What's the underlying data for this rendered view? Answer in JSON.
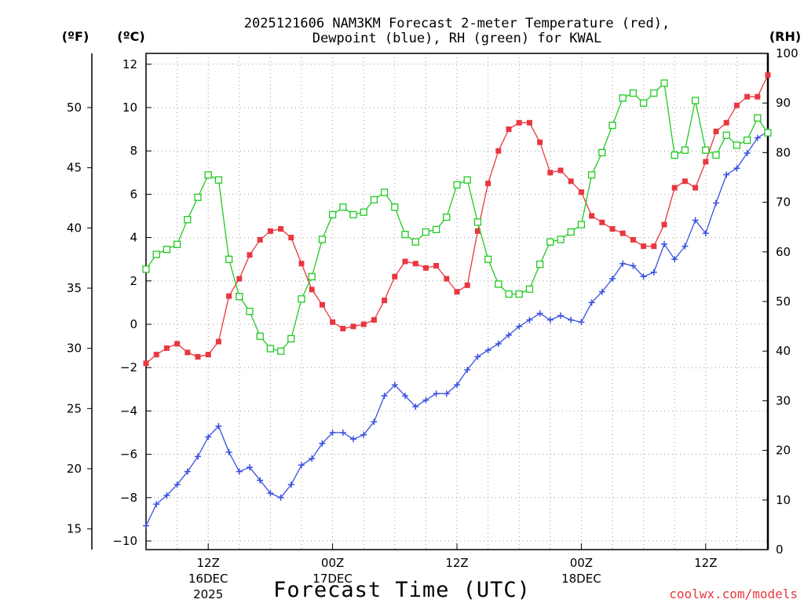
{
  "chart_data": {
    "type": "line",
    "title_line1": "2025121606 NAM3KM Forecast 2-meter Temperature (red),",
    "title_line2": "Dewpoint (blue), RH (green) for KWAL",
    "xlabel": "Forecast Time (UTC)",
    "credit": "coolwx.com/models",
    "unit_f": "(ºF)",
    "unit_c": "(ºC)",
    "unit_rh": "(RH)",
    "hours_start": 0,
    "hours_end": 60,
    "ylim_c": [
      -10.8,
      12.5
    ],
    "ylim_rh": [
      0,
      100
    ],
    "yticks_c": [
      "-10",
      "-8",
      "-6",
      "-4",
      "-2",
      "0",
      "2",
      "4",
      "6",
      "8",
      "10",
      "12"
    ],
    "yticks_f": [
      "15",
      "20",
      "25",
      "30",
      "35",
      "40",
      "45",
      "50"
    ],
    "yticks_rh": [
      "0",
      "10",
      "20",
      "30",
      "40",
      "50",
      "60",
      "70",
      "80",
      "90",
      "100"
    ],
    "xticks": [
      {
        "hour": 6,
        "line1": "12Z",
        "line2": "16DEC",
        "line3": "2025"
      },
      {
        "hour": 18,
        "line1": "00Z",
        "line2": "17DEC",
        "line3": ""
      },
      {
        "hour": 30,
        "line1": "12Z",
        "line2": "",
        "line3": ""
      },
      {
        "hour": 42,
        "line1": "00Z",
        "line2": "18DEC",
        "line3": ""
      },
      {
        "hour": 54,
        "line1": "12Z",
        "line2": "",
        "line3": ""
      }
    ],
    "series": [
      {
        "name": "Temperature",
        "color": "#e8373f",
        "marker": "filled-square",
        "axis": "c",
        "values": [
          -1.8,
          -1.4,
          -1.1,
          -0.9,
          -1.3,
          -1.5,
          -1.4,
          -0.8,
          1.3,
          2.1,
          3.2,
          3.9,
          4.3,
          4.4,
          4.0,
          2.8,
          1.6,
          0.9,
          0.1,
          -0.2,
          -0.1,
          0.0,
          0.2,
          1.1,
          2.2,
          2.9,
          2.8,
          2.6,
          2.7,
          2.1,
          1.5,
          1.8,
          4.3,
          6.5,
          8.0,
          9.0,
          9.3,
          9.3,
          8.4,
          7.0,
          7.1,
          6.6,
          6.1,
          5.0,
          4.7,
          4.4,
          4.2,
          3.9,
          3.6,
          3.6,
          4.6,
          6.3,
          6.6,
          6.3,
          7.5,
          8.9,
          9.3,
          10.1,
          10.5,
          10.5,
          11.5
        ]
      },
      {
        "name": "Dewpoint",
        "color": "#3a50e0",
        "marker": "plus",
        "axis": "c",
        "values": [
          -9.3,
          -8.3,
          -7.9,
          -7.4,
          -6.8,
          -6.1,
          -5.2,
          -4.7,
          -5.9,
          -6.8,
          -6.6,
          -7.2,
          -7.8,
          -8.0,
          -7.4,
          -6.5,
          -6.2,
          -5.5,
          -5.0,
          -5.0,
          -5.3,
          -5.1,
          -4.5,
          -3.3,
          -2.8,
          -3.3,
          -3.8,
          -3.5,
          -3.2,
          -3.2,
          -2.8,
          -2.1,
          -1.5,
          -1.2,
          -0.9,
          -0.5,
          -0.1,
          0.2,
          0.5,
          0.2,
          0.4,
          0.2,
          0.1,
          1.0,
          1.5,
          2.1,
          2.8,
          2.7,
          2.2,
          2.4,
          3.7,
          3.0,
          3.6,
          4.8,
          4.2,
          5.6,
          6.9,
          7.2,
          7.9,
          8.6,
          8.9
        ]
      },
      {
        "name": "RH",
        "color": "#22c922",
        "marker": "open-square",
        "axis": "rh",
        "values": [
          56.5,
          59.5,
          60.5,
          61.5,
          66.5,
          71.0,
          75.5,
          74.5,
          58.5,
          51.0,
          48.0,
          43.0,
          40.5,
          40.0,
          42.5,
          50.5,
          55.0,
          62.5,
          67.5,
          69.0,
          67.5,
          68.0,
          70.5,
          72.0,
          69.0,
          63.5,
          62.0,
          64.0,
          64.5,
          67.0,
          73.5,
          74.5,
          66.0,
          58.5,
          53.5,
          51.5,
          51.5,
          52.5,
          57.5,
          62.0,
          62.5,
          64.0,
          65.5,
          75.5,
          80.0,
          85.5,
          91.0,
          92.0,
          90.0,
          92.0,
          94.0,
          79.5,
          80.5,
          90.5,
          80.5,
          79.5,
          83.5,
          81.5,
          82.5,
          87.0,
          84.0
        ]
      }
    ]
  }
}
